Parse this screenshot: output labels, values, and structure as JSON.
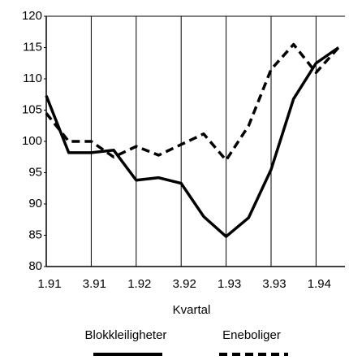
{
  "chart_data": {
    "type": "line",
    "x_label": "Kvartal",
    "categories": [
      "1.91",
      null,
      "3.91",
      null,
      "1.92",
      null,
      "3.92",
      null,
      "1.93",
      null,
      "3.93",
      null,
      "1.94",
      null
    ],
    "series": [
      {
        "name": "Blokkleiligheter",
        "color": "#000000",
        "dash": false,
        "values": [
          107.3,
          98.2,
          98.2,
          98.6,
          93.8,
          94.2,
          93.3,
          88,
          84.8,
          87.8,
          95.5,
          106.8,
          112.5,
          115
        ]
      },
      {
        "name": "Eneboliger",
        "color": "#000000",
        "dash": true,
        "values": [
          104.5,
          100,
          100,
          97.5,
          99.2,
          97.8,
          99.5,
          101.2,
          97,
          102.5,
          111.5,
          115.5,
          111,
          115
        ]
      }
    ],
    "ylim": [
      80,
      120
    ],
    "yticks": [
      80,
      85,
      90,
      95,
      100,
      105,
      110,
      115,
      120
    ],
    "grid": true
  }
}
